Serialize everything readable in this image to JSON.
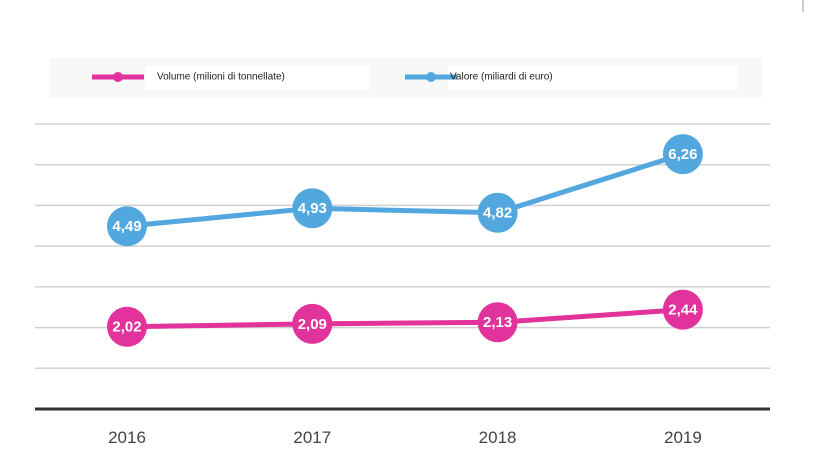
{
  "chart_data": {
    "type": "line",
    "categories": [
      "2016",
      "2017",
      "2018",
      "2019"
    ],
    "series": [
      {
        "name": "Volume (milioni di tonnellate)",
        "color": "#e2329b",
        "values": [
          2.02,
          2.09,
          2.13,
          2.44
        ],
        "value_labels": [
          "2,02",
          "2,09",
          "2,13",
          "2,44"
        ]
      },
      {
        "name": "Valore (miliardi di euro)",
        "color": "#52a8de",
        "values": [
          4.49,
          4.93,
          4.82,
          6.26
        ],
        "value_labels": [
          "4,49",
          "4,93",
          "4,82",
          "6,26"
        ]
      }
    ],
    "ylim": [
      0,
      7
    ],
    "yticks": [
      0,
      1,
      2,
      3,
      4,
      5,
      6,
      7
    ],
    "grid": true
  }
}
